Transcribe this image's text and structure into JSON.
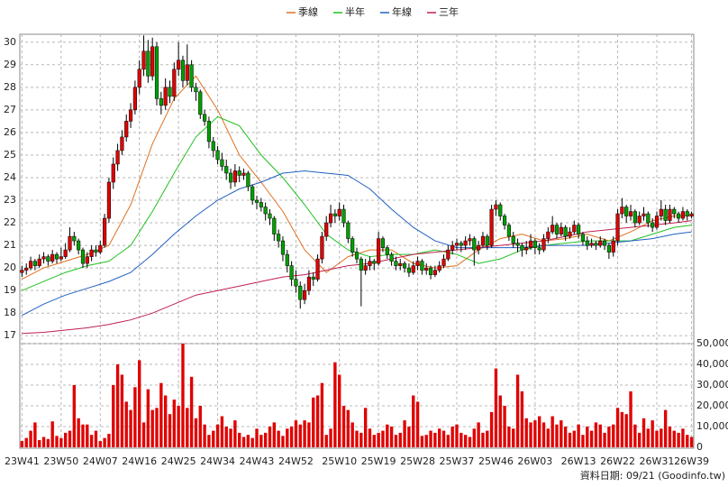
{
  "chart_data": {
    "type": "candlestick",
    "grid": true,
    "up_color": "#e00000",
    "down_color": "#00a000",
    "ylim": [
      16.65,
      30.35
    ],
    "yticks": [
      17,
      18,
      19,
      20,
      21,
      22,
      23,
      24,
      25,
      26,
      27,
      28,
      29,
      30
    ],
    "categories": [
      "23W41",
      null,
      null,
      null,
      null,
      null,
      null,
      null,
      null,
      "23W50",
      null,
      null,
      null,
      null,
      null,
      null,
      null,
      null,
      "24W07",
      null,
      null,
      null,
      null,
      null,
      null,
      null,
      null,
      "24W16",
      null,
      null,
      null,
      null,
      null,
      null,
      null,
      null,
      "24W25",
      null,
      null,
      null,
      null,
      null,
      null,
      null,
      null,
      "24W34",
      null,
      null,
      null,
      null,
      null,
      null,
      null,
      null,
      "24W43",
      null,
      null,
      null,
      null,
      null,
      null,
      null,
      null,
      "24W52",
      null,
      null,
      null,
      null,
      null,
      null,
      null,
      null,
      null,
      "25W10",
      null,
      null,
      null,
      null,
      null,
      null,
      null,
      null,
      "25W19",
      null,
      null,
      null,
      null,
      null,
      null,
      null,
      null,
      "25W28",
      null,
      null,
      null,
      null,
      null,
      null,
      null,
      null,
      "25W37",
      null,
      null,
      null,
      null,
      null,
      null,
      null,
      null,
      "25W46",
      null,
      null,
      null,
      null,
      null,
      null,
      null,
      null,
      "26W03",
      null,
      null,
      null,
      null,
      null,
      null,
      null,
      null,
      null,
      "26W13",
      null,
      null,
      null,
      null,
      null,
      null,
      null,
      null,
      "26W22",
      null,
      null,
      null,
      null,
      null,
      null,
      null,
      null,
      "26W31",
      null,
      null,
      null,
      null,
      null,
      null,
      null,
      "26W39"
    ],
    "ohlc": [
      [
        19.8,
        20.1,
        19.6,
        19.9
      ],
      [
        19.9,
        20.2,
        19.7,
        20.0
      ],
      [
        20.0,
        20.5,
        19.9,
        20.3
      ],
      [
        20.3,
        20.4,
        19.9,
        20.1
      ],
      [
        20.1,
        20.6,
        20.0,
        20.4
      ],
      [
        20.4,
        20.7,
        20.2,
        20.5
      ],
      [
        20.5,
        20.6,
        20.1,
        20.3
      ],
      [
        20.3,
        20.8,
        20.2,
        20.6
      ],
      [
        20.6,
        20.7,
        20.2,
        20.4
      ],
      [
        20.4,
        20.9,
        20.3,
        20.5
      ],
      [
        20.5,
        21.1,
        20.4,
        20.8
      ],
      [
        20.8,
        21.8,
        20.7,
        21.4
      ],
      [
        21.4,
        21.6,
        21.0,
        21.2
      ],
      [
        21.2,
        21.3,
        20.6,
        20.8
      ],
      [
        20.8,
        20.9,
        20.0,
        20.2
      ],
      [
        20.2,
        20.7,
        20.0,
        20.5
      ],
      [
        20.5,
        21.0,
        20.3,
        20.8
      ],
      [
        20.8,
        21.0,
        20.5,
        20.7
      ],
      [
        20.7,
        21.2,
        20.6,
        21.0
      ],
      [
        21.0,
        22.4,
        20.9,
        22.2
      ],
      [
        22.2,
        24.0,
        22.0,
        23.8
      ],
      [
        23.8,
        24.9,
        23.5,
        24.6
      ],
      [
        24.6,
        25.5,
        24.3,
        25.2
      ],
      [
        25.2,
        26.1,
        25.0,
        25.8
      ],
      [
        25.8,
        26.8,
        25.6,
        26.5
      ],
      [
        26.5,
        27.3,
        26.2,
        27.0
      ],
      [
        27.0,
        28.3,
        26.8,
        28.0
      ],
      [
        28.0,
        29.2,
        27.7,
        28.8
      ],
      [
        28.8,
        30.3,
        28.5,
        29.6
      ],
      [
        29.6,
        30.1,
        28.2,
        28.5
      ],
      [
        28.5,
        30.2,
        28.3,
        29.8
      ],
      [
        29.8,
        30.0,
        27.2,
        27.5
      ],
      [
        27.5,
        27.8,
        26.8,
        27.2
      ],
      [
        27.2,
        28.4,
        27.0,
        28.0
      ],
      [
        28.0,
        28.3,
        27.3,
        27.6
      ],
      [
        27.6,
        29.1,
        27.4,
        28.8
      ],
      [
        28.8,
        30.0,
        28.5,
        29.2
      ],
      [
        29.2,
        29.4,
        28.0,
        28.3
      ],
      [
        28.3,
        29.9,
        28.1,
        29.0
      ],
      [
        29.0,
        29.2,
        27.8,
        28.0
      ],
      [
        28.0,
        28.2,
        27.4,
        27.8
      ],
      [
        27.8,
        27.9,
        26.6,
        26.8
      ],
      [
        26.8,
        27.0,
        26.3,
        26.5
      ],
      [
        26.5,
        26.7,
        25.3,
        25.6
      ],
      [
        25.6,
        25.8,
        24.9,
        25.2
      ],
      [
        25.2,
        25.4,
        24.6,
        24.8
      ],
      [
        24.8,
        25.1,
        24.3,
        24.5
      ],
      [
        24.5,
        24.8,
        23.9,
        24.2
      ],
      [
        24.2,
        24.4,
        23.5,
        23.8
      ],
      [
        23.8,
        24.6,
        23.6,
        24.3
      ],
      [
        24.3,
        24.5,
        23.8,
        24.1
      ],
      [
        24.1,
        24.4,
        23.9,
        24.2
      ],
      [
        24.2,
        24.3,
        23.4,
        23.6
      ],
      [
        23.6,
        23.7,
        22.8,
        23.0
      ],
      [
        23.0,
        23.2,
        22.6,
        22.9
      ],
      [
        22.9,
        23.1,
        22.5,
        22.7
      ],
      [
        22.7,
        22.9,
        22.1,
        22.4
      ],
      [
        22.4,
        22.6,
        21.9,
        22.2
      ],
      [
        22.2,
        22.3,
        21.2,
        21.5
      ],
      [
        21.5,
        21.7,
        20.9,
        21.2
      ],
      [
        21.2,
        21.4,
        20.3,
        20.6
      ],
      [
        20.6,
        20.8,
        19.8,
        20.1
      ],
      [
        20.1,
        20.3,
        19.2,
        19.5
      ],
      [
        19.5,
        19.9,
        18.9,
        19.2
      ],
      [
        19.2,
        19.4,
        18.2,
        18.6
      ],
      [
        18.6,
        19.3,
        18.4,
        19.0
      ],
      [
        19.0,
        19.9,
        18.8,
        19.6
      ],
      [
        19.6,
        19.8,
        19.2,
        19.5
      ],
      [
        19.5,
        20.6,
        19.4,
        20.4
      ],
      [
        20.4,
        21.6,
        20.2,
        21.4
      ],
      [
        21.4,
        22.3,
        21.2,
        22.0
      ],
      [
        22.0,
        22.8,
        21.8,
        22.4
      ],
      [
        22.4,
        22.6,
        22.0,
        22.3
      ],
      [
        22.3,
        22.9,
        22.1,
        22.6
      ],
      [
        22.6,
        22.8,
        21.8,
        22.0
      ],
      [
        22.0,
        22.1,
        21.1,
        21.3
      ],
      [
        21.3,
        21.4,
        20.5,
        20.7
      ],
      [
        20.7,
        20.9,
        20.2,
        20.4
      ],
      [
        20.4,
        20.5,
        18.3,
        19.9
      ],
      [
        19.9,
        20.4,
        19.7,
        20.1
      ],
      [
        20.1,
        20.5,
        19.9,
        20.3
      ],
      [
        20.3,
        20.4,
        19.9,
        20.2
      ],
      [
        20.2,
        21.6,
        20.1,
        21.3
      ],
      [
        21.3,
        21.4,
        20.7,
        20.9
      ],
      [
        20.9,
        21.0,
        20.4,
        20.6
      ],
      [
        20.6,
        20.7,
        20.1,
        20.3
      ],
      [
        20.3,
        20.5,
        19.9,
        20.1
      ],
      [
        20.1,
        20.4,
        19.9,
        20.2
      ],
      [
        20.2,
        20.3,
        19.8,
        20.0
      ],
      [
        20.0,
        20.2,
        19.6,
        19.8
      ],
      [
        19.8,
        20.3,
        19.7,
        20.1
      ],
      [
        20.1,
        20.5,
        19.9,
        20.3
      ],
      [
        20.3,
        20.4,
        19.7,
        19.9
      ],
      [
        19.9,
        20.2,
        19.7,
        20.0
      ],
      [
        20.0,
        20.1,
        19.5,
        19.7
      ],
      [
        19.7,
        20.1,
        19.6,
        19.9
      ],
      [
        19.9,
        20.3,
        19.8,
        20.1
      ],
      [
        20.1,
        20.6,
        20.0,
        20.4
      ],
      [
        20.4,
        21.0,
        20.3,
        20.8
      ],
      [
        20.8,
        21.2,
        20.6,
        21.0
      ],
      [
        21.0,
        21.3,
        20.8,
        21.1
      ],
      [
        21.1,
        21.2,
        20.7,
        21.0
      ],
      [
        21.0,
        21.4,
        20.8,
        21.2
      ],
      [
        21.2,
        21.5,
        21.0,
        21.3
      ],
      [
        21.3,
        21.4,
        20.1,
        20.8
      ],
      [
        20.8,
        21.2,
        20.6,
        21.0
      ],
      [
        21.0,
        21.6,
        20.9,
        21.4
      ],
      [
        21.4,
        21.5,
        20.8,
        21.0
      ],
      [
        21.0,
        22.8,
        20.9,
        22.6
      ],
      [
        22.6,
        23.0,
        22.3,
        22.8
      ],
      [
        22.8,
        22.9,
        22.1,
        22.3
      ],
      [
        22.3,
        22.4,
        21.7,
        21.9
      ],
      [
        21.9,
        22.0,
        21.2,
        21.4
      ],
      [
        21.4,
        21.6,
        20.9,
        21.1
      ],
      [
        21.1,
        21.3,
        20.7,
        21.0
      ],
      [
        21.0,
        21.1,
        20.5,
        20.8
      ],
      [
        20.8,
        21.2,
        20.6,
        20.9
      ],
      [
        20.9,
        21.5,
        20.8,
        21.2
      ],
      [
        21.2,
        21.3,
        20.6,
        20.9
      ],
      [
        20.9,
        21.1,
        20.6,
        20.8
      ],
      [
        20.8,
        21.5,
        20.7,
        21.3
      ],
      [
        21.3,
        21.8,
        21.1,
        21.6
      ],
      [
        21.6,
        22.3,
        21.5,
        21.9
      ],
      [
        21.9,
        22.0,
        21.3,
        21.5
      ],
      [
        21.5,
        22.0,
        21.4,
        21.8
      ],
      [
        21.8,
        21.9,
        21.2,
        21.4
      ],
      [
        21.4,
        21.8,
        21.3,
        21.6
      ],
      [
        21.6,
        22.1,
        21.5,
        21.9
      ],
      [
        21.9,
        22.0,
        21.3,
        21.5
      ],
      [
        21.5,
        21.6,
        21.0,
        21.2
      ],
      [
        21.2,
        21.4,
        20.8,
        21.0
      ],
      [
        21.0,
        21.3,
        20.9,
        21.1
      ],
      [
        21.1,
        21.2,
        20.8,
        21.0
      ],
      [
        21.0,
        21.4,
        20.9,
        21.2
      ],
      [
        21.2,
        21.3,
        20.8,
        21.0
      ],
      [
        21.0,
        21.1,
        20.4,
        20.7
      ],
      [
        20.7,
        21.4,
        20.5,
        21.2
      ],
      [
        21.2,
        22.6,
        21.0,
        22.4
      ],
      [
        22.4,
        23.1,
        22.2,
        22.7
      ],
      [
        22.7,
        22.8,
        22.0,
        22.3
      ],
      [
        22.3,
        22.8,
        22.1,
        22.5
      ],
      [
        22.5,
        22.6,
        21.8,
        22.0
      ],
      [
        22.0,
        22.5,
        21.9,
        22.3
      ],
      [
        22.3,
        22.7,
        22.1,
        22.4
      ],
      [
        22.4,
        22.5,
        21.8,
        22.0
      ],
      [
        22.0,
        22.2,
        21.6,
        21.8
      ],
      [
        21.8,
        22.5,
        21.7,
        22.3
      ],
      [
        22.3,
        23.0,
        22.1,
        22.6
      ],
      [
        22.6,
        22.8,
        21.9,
        22.1
      ],
      [
        22.1,
        22.8,
        22.0,
        22.6
      ],
      [
        22.6,
        22.7,
        22.2,
        22.4
      ],
      [
        22.4,
        22.5,
        22.0,
        22.2
      ],
      [
        22.2,
        22.7,
        22.1,
        22.5
      ],
      [
        22.5,
        22.6,
        22.1,
        22.3
      ],
      [
        22.3,
        22.5,
        22.2,
        22.4
      ]
    ],
    "ma": {
      "x": [
        0,
        5,
        10,
        15,
        20,
        25,
        30,
        35,
        40,
        45,
        50,
        55,
        60,
        65,
        70,
        75,
        80,
        85,
        90,
        95,
        100,
        105,
        110,
        115,
        120,
        125,
        130,
        135,
        140,
        145,
        150,
        154
      ],
      "series": [
        {
          "name": "季線",
          "color": "#e07020",
          "values": [
            19.5,
            20.0,
            20.3,
            20.6,
            21.0,
            22.8,
            25.5,
            27.5,
            28.5,
            27.0,
            25.0,
            23.8,
            22.5,
            20.8,
            19.8,
            20.5,
            20.8,
            20.8,
            20.2,
            20.0,
            20.1,
            20.8,
            21.3,
            21.5,
            21.2,
            21.3,
            21.5,
            21.2,
            21.6,
            22.1,
            22.3,
            22.3
          ]
        },
        {
          "name": "半年",
          "color": "#20c020",
          "values": [
            19.0,
            19.4,
            19.8,
            20.1,
            20.3,
            21.0,
            22.5,
            24.2,
            25.8,
            26.7,
            26.3,
            25.0,
            24.0,
            22.8,
            21.5,
            20.8,
            20.5,
            20.6,
            20.6,
            20.8,
            20.6,
            20.2,
            20.4,
            20.8,
            21.0,
            21.1,
            21.2,
            21.2,
            21.2,
            21.5,
            21.8,
            21.9
          ]
        },
        {
          "name": "年線",
          "color": "#2060c0",
          "values": [
            17.9,
            18.4,
            18.8,
            19.1,
            19.4,
            19.8,
            20.6,
            21.5,
            22.3,
            23.0,
            23.5,
            23.8,
            24.2,
            24.3,
            24.2,
            24.1,
            23.5,
            22.6,
            21.8,
            21.2,
            20.9,
            20.9,
            20.9,
            20.9,
            21.0,
            21.0,
            21.0,
            21.1,
            21.2,
            21.3,
            21.5,
            21.6
          ]
        },
        {
          "name": "三年",
          "color": "#c02050",
          "values": [
            17.1,
            17.15,
            17.25,
            17.35,
            17.5,
            17.7,
            18.0,
            18.4,
            18.8,
            19.0,
            19.2,
            19.4,
            19.6,
            19.7,
            19.9,
            20.1,
            20.2,
            20.4,
            20.6,
            20.7,
            20.8,
            20.9,
            21.0,
            21.1,
            21.2,
            21.4,
            21.6,
            21.7,
            21.8,
            21.9,
            22.0,
            22.1
          ]
        }
      ]
    },
    "volume": {
      "color": "#e00000",
      "ylim": [
        0,
        50000
      ],
      "yticks": [
        0,
        {
          "value": 10000,
          "label": "10,000"
        },
        {
          "value": 20000,
          "label": "20,000"
        },
        {
          "value": 30000,
          "label": "30,000"
        },
        {
          "value": 40000,
          "label": "40,000"
        },
        {
          "value": 50000,
          "label": "50,000"
        }
      ],
      "values": [
        3000,
        4500,
        8000,
        12000,
        3500,
        5000,
        4000,
        12500,
        5500,
        4500,
        7000,
        8000,
        30000,
        14000,
        11000,
        11000,
        6000,
        8000,
        3000,
        4500,
        6500,
        30000,
        40000,
        35000,
        22000,
        18000,
        29000,
        42000,
        12000,
        28000,
        18000,
        19000,
        31000,
        25000,
        16000,
        23000,
        20000,
        50000,
        19000,
        34000,
        14000,
        20000,
        11000,
        6000,
        8000,
        11000,
        15000,
        10000,
        9000,
        13000,
        7000,
        5000,
        6000,
        4500,
        9000,
        6000,
        7000,
        10000,
        12000,
        8000,
        5500,
        9000,
        10000,
        13000,
        11000,
        13000,
        12000,
        24000,
        25000,
        31000,
        6000,
        9000,
        41000,
        35000,
        20000,
        18000,
        12000,
        8000,
        7000,
        19000,
        9000,
        6000,
        7000,
        8000,
        11000,
        10000,
        6000,
        7000,
        13000,
        10000,
        25000,
        22000,
        5500,
        6000,
        8000,
        7000,
        9000,
        8000,
        6000,
        10000,
        11000,
        7000,
        6000,
        5000,
        9000,
        12000,
        7000,
        8000,
        17000,
        38000,
        25000,
        20000,
        10000,
        9000,
        35000,
        27000,
        14000,
        12000,
        13000,
        15000,
        12000,
        9000,
        15000,
        11000,
        13000,
        10000,
        7000,
        8000,
        11000,
        6000,
        10000,
        8000,
        12000,
        11000,
        7000,
        10000,
        11000,
        19000,
        17000,
        16000,
        27000,
        11000,
        7000,
        14000,
        9000,
        13000,
        8000,
        9000,
        18000,
        10000,
        8000,
        7000,
        9000,
        6000,
        5000
      ]
    },
    "footer": "資料日期: 09/21 (Goodinfo.tw)"
  }
}
